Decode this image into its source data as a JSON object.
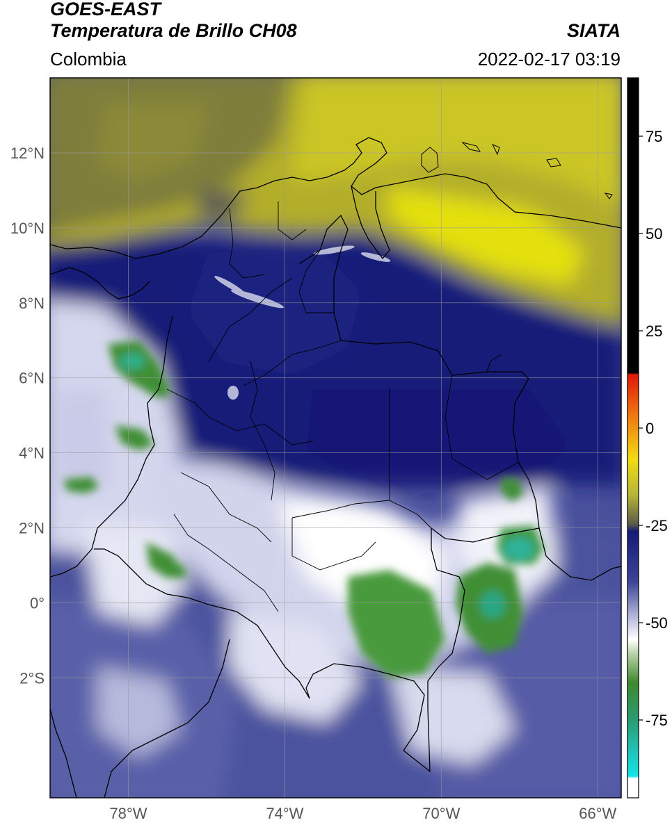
{
  "header": {
    "satellite": "GOES-EAST",
    "product": "Temperatura de Brillo CH08",
    "region": "Colombia",
    "agency": "SIATA",
    "datetime": "2022-02-17 03:19"
  },
  "map": {
    "lon_range": [
      -80,
      -65.4
    ],
    "lat_range": [
      -5.2,
      14.0
    ],
    "lat_ticks": [
      {
        "value": 12,
        "label": "12°N"
      },
      {
        "value": 10,
        "label": "10°N"
      },
      {
        "value": 8,
        "label": "8°N"
      },
      {
        "value": 6,
        "label": "6°N"
      },
      {
        "value": 4,
        "label": "4°N"
      },
      {
        "value": 2,
        "label": "2°N"
      },
      {
        "value": 0,
        "label": "0°"
      },
      {
        "value": -2,
        "label": "2°S"
      }
    ],
    "lon_ticks": [
      {
        "value": -78,
        "label": "78°W"
      },
      {
        "value": -74,
        "label": "74°W"
      },
      {
        "value": -70,
        "label": "70°W"
      },
      {
        "value": -66,
        "label": "66°W"
      }
    ],
    "grid": true,
    "colors": {
      "dry_yellow": "#c9c41e",
      "bright_yellow": "#e6e20a",
      "olive": "#8a8a2e",
      "dark_olive": "#6b6b3a",
      "navy": "#141a78",
      "mid_blue": "#3c4496",
      "lavender": "#9ea2d0",
      "white": "#ffffff",
      "green": "#3d8a2d",
      "teal": "#2fb39a"
    }
  },
  "colorbar": {
    "range": [
      -95,
      90
    ],
    "ticks": [
      {
        "value": 75,
        "label": "75"
      },
      {
        "value": 50,
        "label": "50"
      },
      {
        "value": 25,
        "label": "25"
      },
      {
        "value": 0,
        "label": "0"
      },
      {
        "value": -25,
        "label": "-25"
      },
      {
        "value": -50,
        "label": "-50"
      },
      {
        "value": -75,
        "label": "-75"
      }
    ]
  }
}
